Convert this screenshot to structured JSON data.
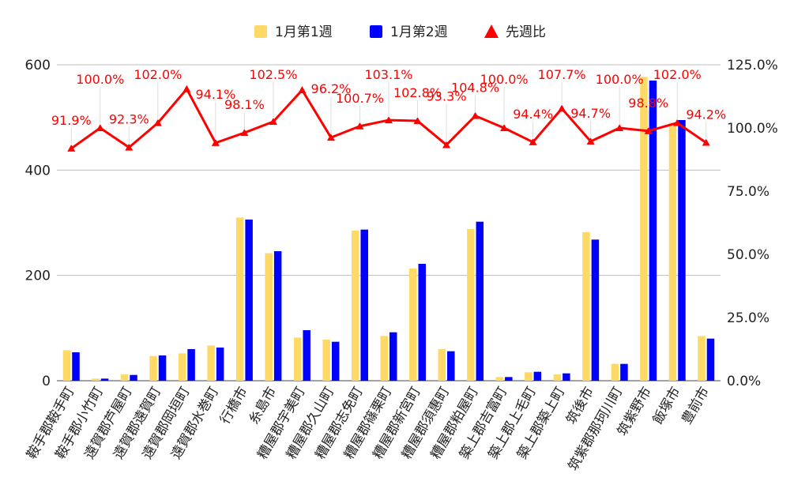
{
  "chart_data": {
    "type": "bar",
    "categories": [
      "鞍手郡鞍手町",
      "鞍手郡小竹町",
      "遠賀郡芦屋町",
      "遠賀郡遠賀町",
      "遠賀郡岡垣町",
      "遠賀郡水巻町",
      "行橋市",
      "糸島市",
      "糟屋郡宇美町",
      "糟屋郡久山町",
      "糟屋郡志免町",
      "糟屋郡篠栗町",
      "糟屋郡新宮町",
      "糟屋郡須惠町",
      "糟屋郡粕屋町",
      "築上郡吉富町",
      "築上郡上毛町",
      "築上郡築上町",
      "筑後市",
      "筑紫郡那珂川町",
      "筑紫野市",
      "飯塚市",
      "豊前市"
    ],
    "series": [
      {
        "name": "1月第1週",
        "type": "bar",
        "axis": "left",
        "color": "#ffd966",
        "values": [
          58,
          4,
          12,
          47,
          52,
          67,
          310,
          242,
          82,
          78,
          285,
          85,
          213,
          60,
          288,
          7,
          16,
          12,
          282,
          32,
          577,
          490,
          85
        ]
      },
      {
        "name": "1月第2週",
        "type": "bar",
        "axis": "left",
        "color": "#0000ff",
        "values": [
          54,
          4,
          11,
          48,
          60,
          63,
          306,
          246,
          96,
          74,
          287,
          92,
          222,
          56,
          302,
          7,
          17,
          14,
          268,
          32,
          570,
          495,
          80
        ]
      },
      {
        "name": "先週比",
        "type": "line",
        "axis": "right",
        "color": "#ff0000",
        "marker": "triangle",
        "values": [
          91.9,
          100.0,
          92.3,
          102.0,
          115.4,
          94.1,
          98.1,
          102.5,
          115.0,
          96.2,
          100.7,
          103.1,
          102.8,
          93.3,
          104.8,
          100.0,
          94.4,
          107.7,
          94.7,
          100.0,
          98.8,
          102.0,
          94.2
        ],
        "labels": [
          "91.9%",
          "100.0%",
          "92.3%",
          "102.0%",
          "",
          "94.1%",
          "98.1%",
          "102.5%",
          "",
          "96.2%",
          "100.7%",
          "103.1%",
          "102.8%",
          "93.3%",
          "104.8%",
          "100.0%",
          "94.4%",
          "107.7%",
          "94.7%",
          "100.0%",
          "98.8%",
          "102.0%",
          "94.2%"
        ]
      }
    ],
    "y_left": {
      "min": 0,
      "max": 600,
      "ticks": [
        "0",
        "200",
        "400",
        "600"
      ]
    },
    "y_right": {
      "min": 0,
      "max": 125,
      "ticks": [
        "0.0%",
        "25.0%",
        "50.0%",
        "75.0%",
        "100.0%",
        "125.0%"
      ]
    },
    "legend_position": "top",
    "grid": true
  }
}
